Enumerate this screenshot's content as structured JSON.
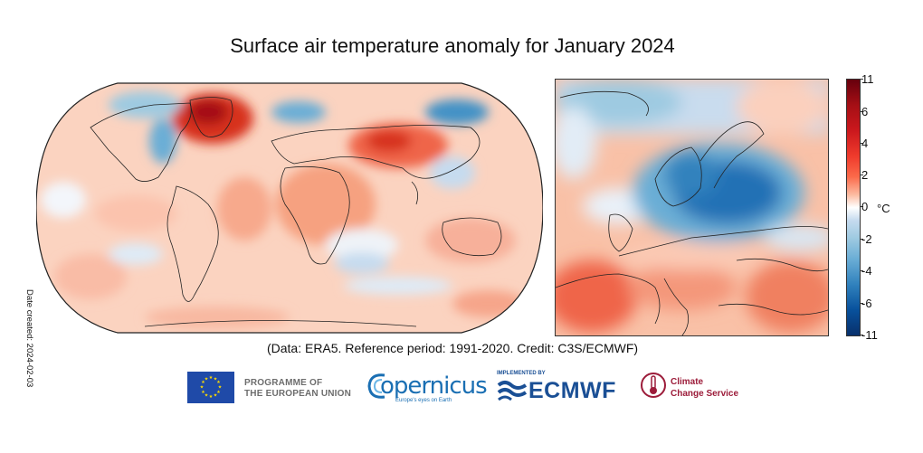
{
  "title": "Surface air temperature anomaly for January 2024",
  "colorbar": {
    "unit": "°C",
    "ticks": [
      "11",
      "6",
      "4",
      "2",
      "0",
      "-2",
      "-4",
      "-6",
      "-11"
    ],
    "colors": {
      "max": "#67000d",
      "mid": "#ffffff",
      "min": "#08306b"
    }
  },
  "date_created": "Date created: 2024-02-03",
  "credit": "(Data: ERA5.  Reference period: 1991-2020.  Credit: C3S/ECMWF)",
  "logos": {
    "eu": {
      "line1": "PROGRAMME OF",
      "line2": "THE EUROPEAN UNION",
      "icon": "eu-flag-icon"
    },
    "copernicus": {
      "name": "opernicus",
      "tagline": "Europe's eyes on Earth",
      "icon": "copernicus-c-icon"
    },
    "ecmwf": {
      "implemented": "IMPLEMENTED BY",
      "name": "ECMWF",
      "icon": "ecmwf-waves-icon"
    },
    "c3s": {
      "line1": "Climate",
      "line2": "Change Service",
      "icon": "c3s-thermometer-icon"
    }
  }
}
